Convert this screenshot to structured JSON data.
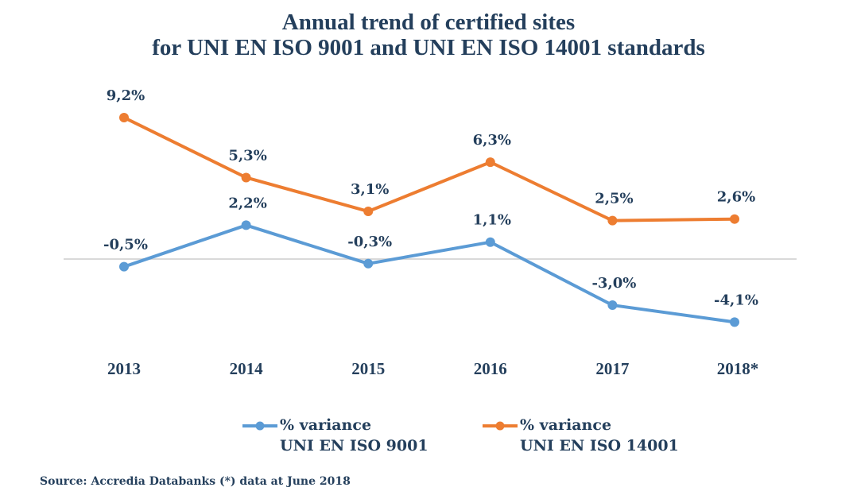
{
  "chart_data": {
    "type": "line",
    "title": "Annual trend of certified sites",
    "subtitle": "for UNI EN ISO 9001 and UNI EN ISO 14001 standards",
    "categories": [
      "2013",
      "2014",
      "2015",
      "2016",
      "2017",
      "2018*"
    ],
    "series": [
      {
        "name": "% variance UNI EN ISO 9001",
        "legend_line1": "% variance",
        "legend_line2": "UNI EN ISO 9001",
        "color": "#5b9bd5",
        "values": [
          -0.5,
          2.2,
          -0.3,
          1.1,
          -3.0,
          -4.1
        ],
        "labels": [
          "-0,5%",
          "2,2%",
          "-0,3%",
          "1,1%",
          "-3,0%",
          "-4,1%"
        ]
      },
      {
        "name": "% variance UNI EN ISO 14001",
        "legend_line1": "% variance",
        "legend_line2": "UNI EN ISO 14001",
        "color": "#ed7d31",
        "values": [
          9.2,
          5.3,
          3.1,
          6.3,
          2.5,
          2.6
        ],
        "labels": [
          "9,2%",
          "5,3%",
          "3,1%",
          "6,3%",
          "2,5%",
          "2,6%"
        ]
      }
    ],
    "xlabel": "",
    "ylabel": "",
    "ylim": [
      -5,
      10
    ],
    "grid": false,
    "zero_line": true,
    "legend_position": "bottom",
    "text_color": "#243f5c",
    "zero_line_color": "#d9d9d9"
  },
  "source": "Source: Accredia Databanks (*) data at June 2018"
}
